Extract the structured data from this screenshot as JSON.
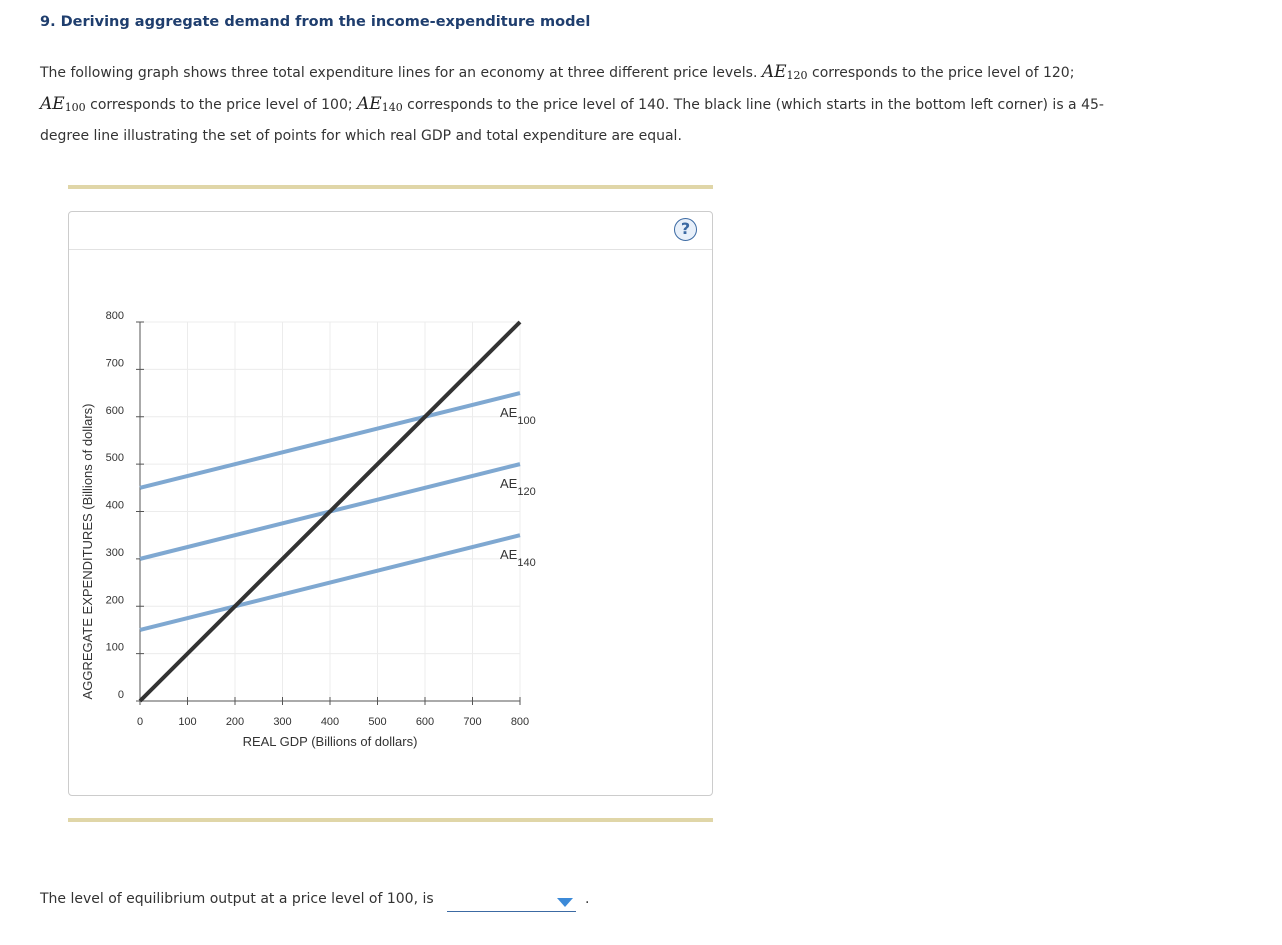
{
  "problem_title": "9. Deriving aggregate demand from the income-expenditure model",
  "intro": {
    "t1": "The following graph shows three total expenditure lines for an economy at three different price levels.",
    "t2": "corresponds to the price level of 120;",
    "t3": "corresponds to the price level of 100;",
    "t4": "corresponds to the price level of 140. The black line (which starts in the bottom left corner) is a 45-degree line illustrating the set of points for which real GDP and total expenditure are equal.",
    "sym": "AE",
    "sub120": "120",
    "sub100": "100",
    "sub140": "140"
  },
  "help_icon_text": "?",
  "chart_data": {
    "type": "line",
    "xlabel": "REAL GDP (Billions of dollars)",
    "ylabel": "AGGREGATE EXPENDITURES (Billions of dollars)",
    "xlim": [
      0,
      800
    ],
    "ylim": [
      0,
      800
    ],
    "x_ticks": [
      0,
      100,
      200,
      300,
      400,
      500,
      600,
      700,
      800
    ],
    "y_ticks": [
      0,
      100,
      200,
      300,
      400,
      500,
      600,
      700,
      800
    ],
    "grid": true,
    "series": [
      {
        "name": "AE100",
        "label_main": "AE",
        "label_sub": "100",
        "color": "#7fa8d1",
        "points": [
          [
            0,
            450
          ],
          [
            800,
            650
          ]
        ]
      },
      {
        "name": "AE120",
        "label_main": "AE",
        "label_sub": "120",
        "color": "#7fa8d1",
        "points": [
          [
            0,
            300
          ],
          [
            800,
            500
          ]
        ]
      },
      {
        "name": "AE140",
        "label_main": "AE",
        "label_sub": "140",
        "color": "#7fa8d1",
        "points": [
          [
            0,
            150
          ],
          [
            800,
            350
          ]
        ]
      },
      {
        "label_main": "",
        "label_sub": "",
        "color": "#333333",
        "points": [
          [
            0,
            0
          ],
          [
            800,
            800
          ]
        ]
      }
    ]
  },
  "question": {
    "text": "The level of equilibrium output at a price level of 100, is",
    "selected": "",
    "period": "."
  },
  "colors": {
    "title": "#1f3e6e",
    "rule": "#e0d6a8",
    "accent": "#3c8ad8"
  }
}
